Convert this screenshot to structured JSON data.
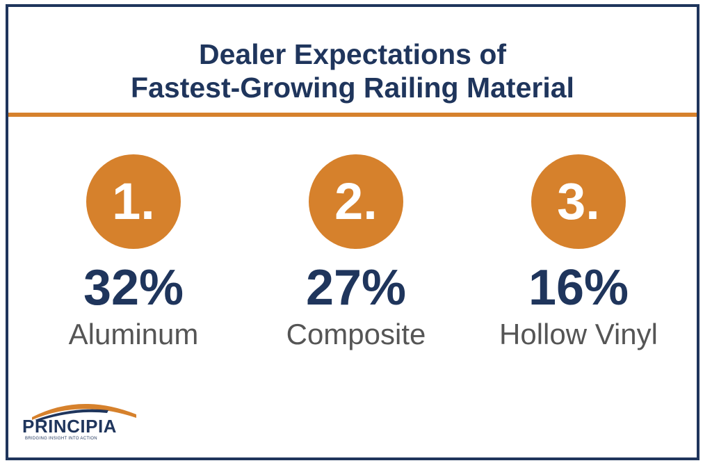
{
  "title": {
    "line1": "Dealer Expectations of",
    "line2": "Fastest-Growing Railing Material"
  },
  "items": [
    {
      "rank": "1.",
      "percent": "32%",
      "material": "Aluminum"
    },
    {
      "rank": "2.",
      "percent": "27%",
      "material": "Composite"
    },
    {
      "rank": "3.",
      "percent": "16%",
      "material": "Hollow Vinyl"
    }
  ],
  "logo": {
    "name": "PRINCIPIA",
    "tagline": "BRIDGING INSIGHT INTO ACTION"
  },
  "colors": {
    "navy": "#1f355c",
    "orange": "#d6812c",
    "gray_text": "#555555"
  }
}
